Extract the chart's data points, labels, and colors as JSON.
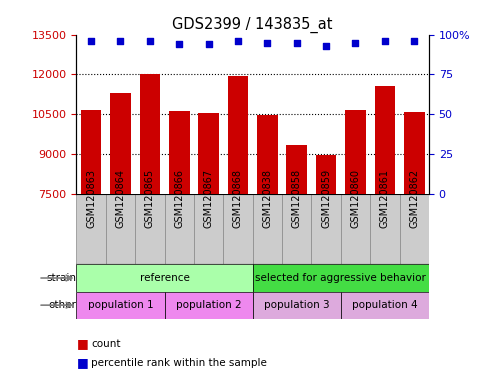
{
  "title": "GDS2399 / 143835_at",
  "samples": [
    "GSM120863",
    "GSM120864",
    "GSM120865",
    "GSM120866",
    "GSM120867",
    "GSM120868",
    "GSM120838",
    "GSM120858",
    "GSM120859",
    "GSM120860",
    "GSM120861",
    "GSM120862"
  ],
  "counts": [
    10650,
    11300,
    12020,
    10630,
    10540,
    11960,
    10460,
    9350,
    8980,
    10660,
    11550,
    10600
  ],
  "percentile_ranks": [
    96,
    96,
    96,
    94,
    94,
    96,
    95,
    95,
    93,
    95,
    96,
    96
  ],
  "y_min": 7500,
  "y_max": 13500,
  "y_ticks": [
    7500,
    9000,
    10500,
    12000,
    13500
  ],
  "y2_ticks": [
    0,
    25,
    50,
    75,
    100
  ],
  "bar_color": "#cc0000",
  "dot_color": "#0000cc",
  "strain_labels": [
    {
      "text": "reference",
      "start": 0,
      "end": 6,
      "color": "#aaffaa"
    },
    {
      "text": "selected for aggressive behavior",
      "start": 6,
      "end": 12,
      "color": "#44dd44"
    }
  ],
  "other_labels": [
    {
      "text": "population 1",
      "start": 0,
      "end": 3,
      "color": "#ee88ee"
    },
    {
      "text": "population 2",
      "start": 3,
      "end": 6,
      "color": "#ee88ee"
    },
    {
      "text": "population 3",
      "start": 6,
      "end": 9,
      "color": "#ddaadd"
    },
    {
      "text": "population 4",
      "start": 9,
      "end": 12,
      "color": "#ddaadd"
    }
  ],
  "legend_count_color": "#cc0000",
  "legend_dot_color": "#0000cc",
  "tick_label_color_left": "#cc0000",
  "tick_label_color_right": "#0000cc",
  "xlabel_bg_color": "#cccccc",
  "xlabel_border_color": "#888888"
}
